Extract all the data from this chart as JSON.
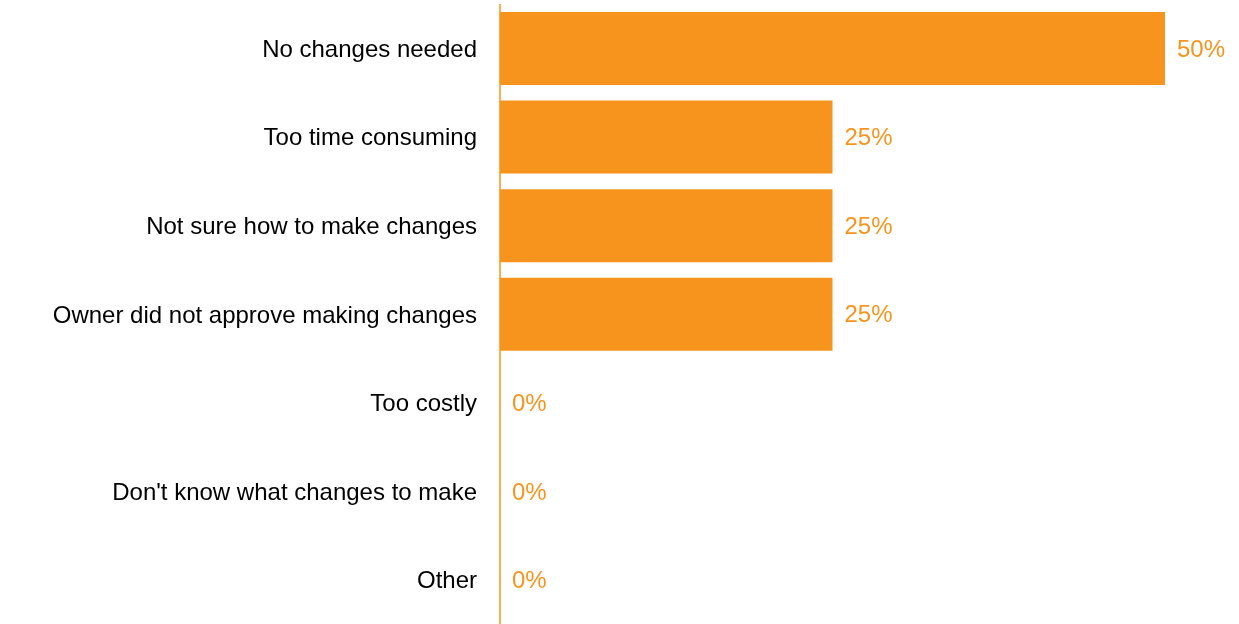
{
  "chart_data": {
    "type": "bar",
    "orientation": "horizontal",
    "tick_labels": "y",
    "categories": [
      "No changes needed",
      "Too time consuming",
      "Not sure how to make changes",
      "Owner did not approve making changes",
      "Too costly",
      "Don't know what changes to make",
      "Other"
    ],
    "values": [
      50,
      25,
      25,
      25,
      0,
      0,
      0
    ],
    "value_labels": [
      "50%",
      "25%",
      "25%",
      "25%",
      "0%",
      "0%",
      "0%"
    ],
    "color": "#f7941d",
    "grid": false,
    "legend": false
  }
}
